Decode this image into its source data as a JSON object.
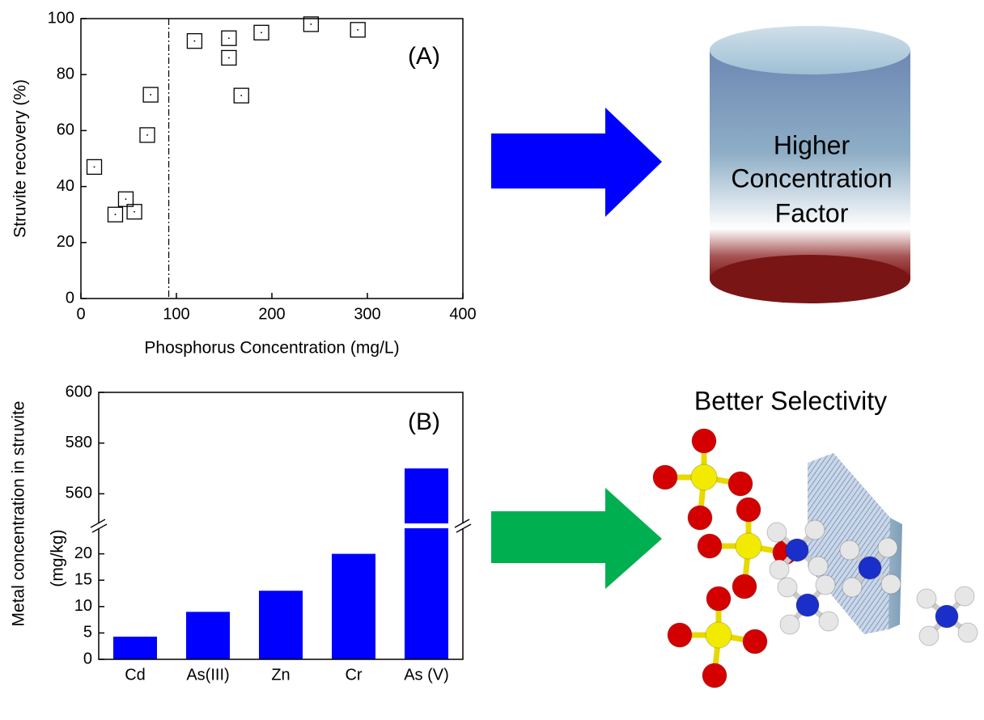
{
  "chart_data": [
    {
      "type": "scatter",
      "xlabel": "Phosphorus Concentration (mg/L)",
      "ylabel": "Struvite recovery (%)",
      "annotation": "(A)",
      "x": [
        14,
        36,
        47,
        56,
        69.5,
        73,
        119,
        155,
        155,
        168,
        189,
        241,
        290
      ],
      "values": [
        47,
        30,
        35.5,
        31,
        58.4,
        72.8,
        92,
        93,
        86,
        72.5,
        95,
        98,
        96
      ],
      "color": "#000000",
      "threshold_x": 92,
      "xlim": [
        0,
        400
      ],
      "xticks": [
        0,
        100,
        200,
        300,
        400
      ],
      "ylim": [
        0,
        100
      ],
      "yticks": [
        0,
        20,
        40,
        60,
        80,
        100
      ]
    },
    {
      "type": "bar",
      "ylabel": [
        "Metal concentration in struvite",
        "(mg/kg)"
      ],
      "annotation": "(B)",
      "categories": [
        "Cd",
        "As(III)",
        "Zn",
        "Cr",
        "As (V)"
      ],
      "values": [
        4.3,
        9,
        13,
        20,
        570
      ],
      "color": "#0000ff",
      "ylim": [
        0,
        600
      ],
      "y_break": [
        25,
        548
      ],
      "yticks": [
        0,
        5,
        10,
        15,
        20,
        560,
        580,
        600
      ]
    }
  ],
  "concentration_panel": {
    "label": [
      "Higher",
      "Concentration",
      "Factor"
    ]
  },
  "selectivity_panel": {
    "title": "Better Selectivity"
  }
}
